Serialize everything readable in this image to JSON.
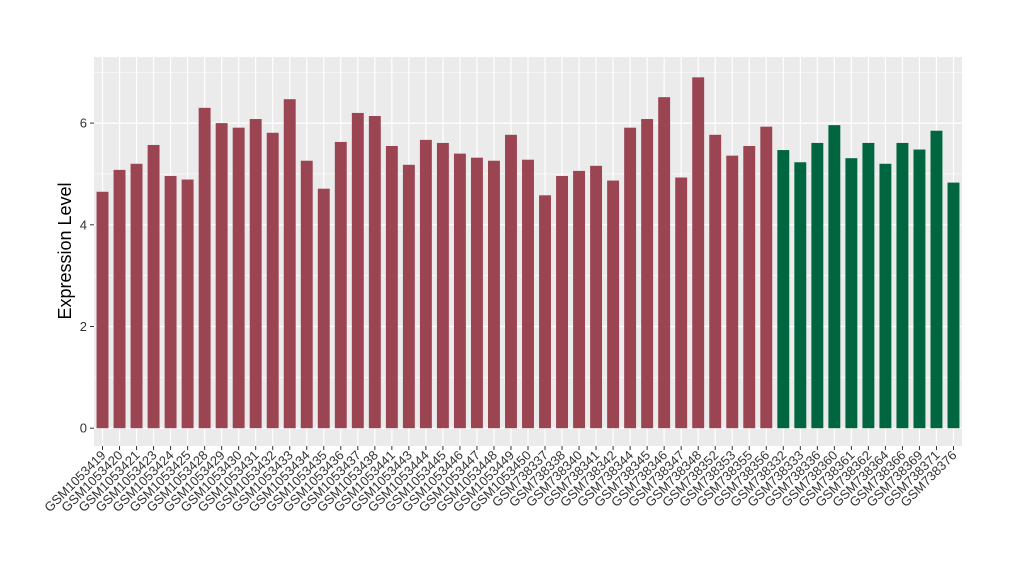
{
  "chart_data": {
    "type": "bar",
    "ylabel": "Expression Level",
    "xlabel": "",
    "ylim": [
      -0.35,
      7.3
    ],
    "yticks": [
      0,
      2,
      4,
      6
    ],
    "grid": true,
    "legend": "none",
    "colors": {
      "group_a": "#9b4452",
      "group_b": "#00663f",
      "panel": "#ebebeb",
      "grid": "#ffffff"
    },
    "categories": [
      "GSM1053419",
      "GSM1053420",
      "GSM1053421",
      "GSM1053423",
      "GSM1053424",
      "GSM1053425",
      "GSM1053428",
      "GSM1053429",
      "GSM1053430",
      "GSM1053431",
      "GSM1053432",
      "GSM1053433",
      "GSM1053434",
      "GSM1053435",
      "GSM1053436",
      "GSM1053437",
      "GSM1053438",
      "GSM1053441",
      "GSM1053443",
      "GSM1053444",
      "GSM1053445",
      "GSM1053446",
      "GSM1053447",
      "GSM1053448",
      "GSM1053449",
      "GSM1053450",
      "GSM738337",
      "GSM738338",
      "GSM738340",
      "GSM738341",
      "GSM738342",
      "GSM738344",
      "GSM738345",
      "GSM738346",
      "GSM738347",
      "GSM738348",
      "GSM738352",
      "GSM738353",
      "GSM738355",
      "GSM738356",
      "GSM738332",
      "GSM738333",
      "GSM738336",
      "GSM738360",
      "GSM738361",
      "GSM738362",
      "GSM738364",
      "GSM738366",
      "GSM738369",
      "GSM738371",
      "GSM738376"
    ],
    "values": [
      4.65,
      5.08,
      5.2,
      5.57,
      4.96,
      4.89,
      6.3,
      6.0,
      5.91,
      6.08,
      5.81,
      6.47,
      5.26,
      4.71,
      5.63,
      6.2,
      6.14,
      5.55,
      5.18,
      5.67,
      5.61,
      5.4,
      5.32,
      5.26,
      5.77,
      5.28,
      4.58,
      4.96,
      5.06,
      5.16,
      4.87,
      5.91,
      6.08,
      6.51,
      4.93,
      6.9,
      5.77,
      5.36,
      5.55,
      5.93,
      5.47,
      5.23,
      5.61,
      5.96,
      5.31,
      5.61,
      5.2,
      5.61,
      5.48,
      5.85,
      4.83
    ],
    "groups": [
      "a",
      "a",
      "a",
      "a",
      "a",
      "a",
      "a",
      "a",
      "a",
      "a",
      "a",
      "a",
      "a",
      "a",
      "a",
      "a",
      "a",
      "a",
      "a",
      "a",
      "a",
      "a",
      "a",
      "a",
      "a",
      "a",
      "a",
      "a",
      "a",
      "a",
      "a",
      "a",
      "a",
      "a",
      "a",
      "a",
      "a",
      "a",
      "a",
      "a",
      "b",
      "b",
      "b",
      "b",
      "b",
      "b",
      "b",
      "b",
      "b",
      "b",
      "b"
    ]
  }
}
